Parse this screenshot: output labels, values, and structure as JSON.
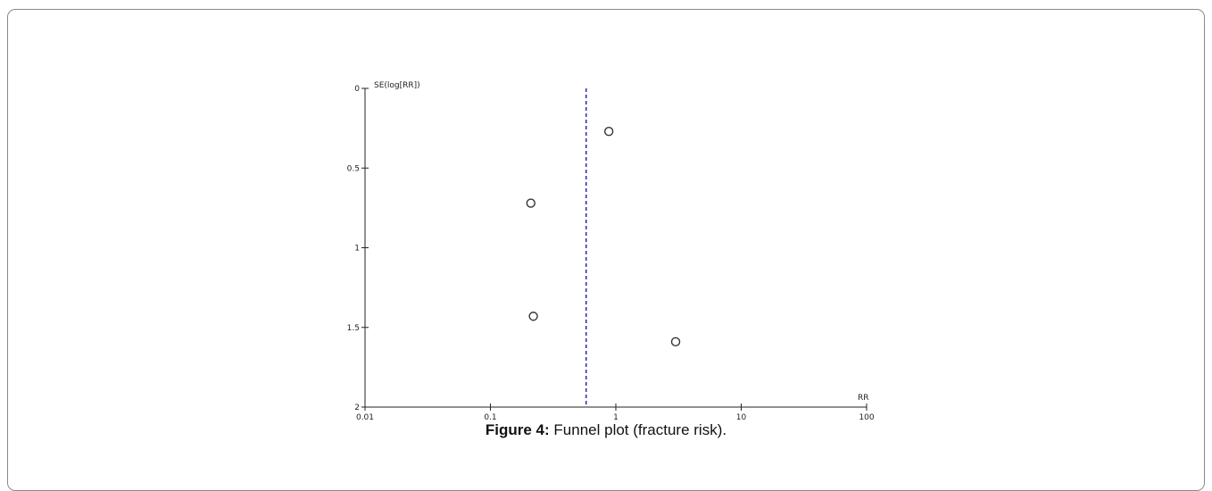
{
  "caption": {
    "label": "Figure 4:",
    "text": " Funnel plot (fracture risk)."
  },
  "chart_data": {
    "type": "scatter",
    "ylabel": "SE(log[RR])",
    "xlabel": "RR",
    "x_scale": "log",
    "y_reversed": true,
    "xlim": [
      0.01,
      100
    ],
    "ylim": [
      0,
      2
    ],
    "x_ticks": [
      {
        "value": 0.01,
        "label": "0.01"
      },
      {
        "value": 0.1,
        "label": "0.1"
      },
      {
        "value": 1,
        "label": "1"
      },
      {
        "value": 10,
        "label": "10"
      },
      {
        "value": 100,
        "label": "100"
      }
    ],
    "y_ticks": [
      {
        "value": 0,
        "label": "0"
      },
      {
        "value": 0.5,
        "label": "0.5"
      },
      {
        "value": 1,
        "label": "1"
      },
      {
        "value": 1.5,
        "label": "1.5"
      },
      {
        "value": 2,
        "label": "2"
      }
    ],
    "points": [
      {
        "x": 0.88,
        "y": 0.27
      },
      {
        "x": 0.21,
        "y": 0.72
      },
      {
        "x": 0.22,
        "y": 1.43
      },
      {
        "x": 3.0,
        "y": 1.59
      }
    ],
    "reference_line": {
      "x": 0.58,
      "style": "dashed",
      "color": "#2b2bb0"
    },
    "grid": false,
    "marker": "open-circle",
    "colors": {
      "axis": "#222222",
      "marker": "#333333"
    }
  }
}
